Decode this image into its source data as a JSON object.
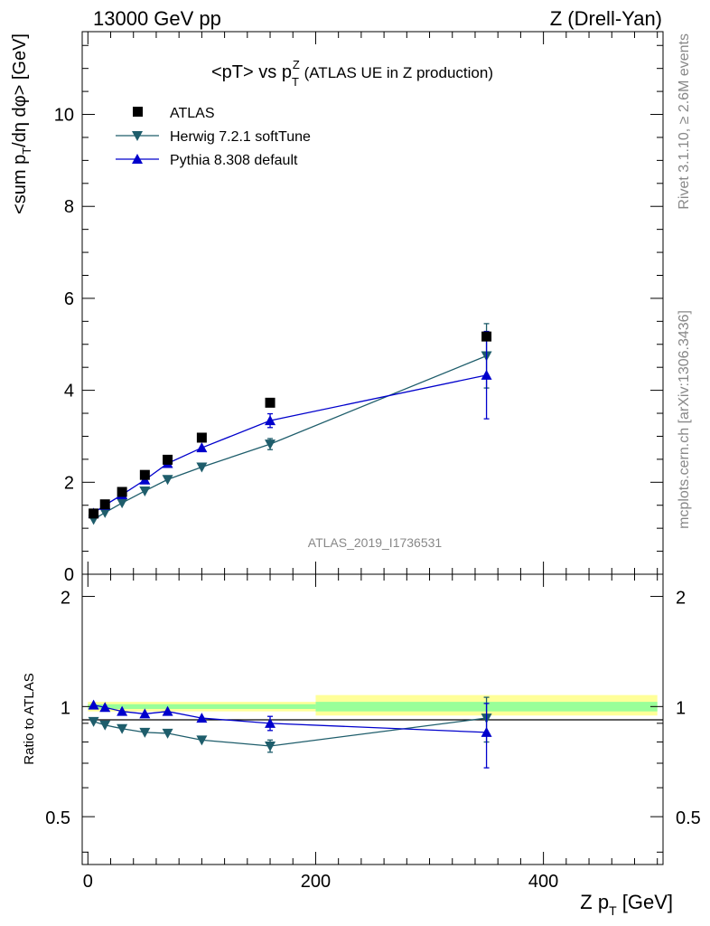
{
  "header": {
    "left": "13000 GeV pp",
    "right": "Z (Drell-Yan)"
  },
  "side_text": {
    "rivet": "Rivet 3.1.10, ≥ 2.6M events",
    "mcplots": "mcplots.cern.ch [arXiv:1306.3436]"
  },
  "chart_data": [
    {
      "type": "scatter",
      "title_main": "<pT> vs p",
      "title_sub": "T",
      "title_sup": "Z",
      "title_tail": " (ATLAS UE in Z production)",
      "ylabel": "<sum p_T/dη dφ> [GeV]",
      "ylim": [
        0,
        11.8
      ],
      "xlim": [
        -5,
        505
      ],
      "yticks": [
        "0",
        "2",
        "4",
        "6",
        "8",
        "10"
      ],
      "watermark": "ATLAS_2019_I1736531",
      "legend_placement": "top-left",
      "x": [
        5,
        15,
        30,
        50,
        70,
        100,
        160,
        350
      ],
      "series": [
        {
          "name": "ATLAS",
          "color": "#000000",
          "marker": "square",
          "values": [
            1.32,
            1.52,
            1.79,
            2.16,
            2.49,
            2.97,
            3.73,
            5.17
          ]
        },
        {
          "name": "Herwig 7.2.1 softTune",
          "color": "#1e5d6b",
          "marker": "triangle-down",
          "values": [
            1.19,
            1.34,
            1.55,
            1.81,
            2.06,
            2.33,
            2.83,
            4.75
          ],
          "errors": [
            0.02,
            0.02,
            0.03,
            0.03,
            0.04,
            0.06,
            0.12,
            0.7
          ]
        },
        {
          "name": "Pythia 8.308 default",
          "color": "#0000cc",
          "marker": "triangle-up",
          "values": [
            1.33,
            1.5,
            1.73,
            2.05,
            2.41,
            2.75,
            3.34,
            4.33
          ],
          "errors": [
            0.02,
            0.02,
            0.03,
            0.03,
            0.04,
            0.06,
            0.15,
            0.95
          ]
        }
      ]
    },
    {
      "type": "scatter",
      "ylabel": "Ratio to ATLAS",
      "xlabel": "Z p_T [GeV]",
      "ylim": [
        0.37,
        2.3
      ],
      "log_y": true,
      "yticks": [
        "0.5",
        "1",
        "2"
      ],
      "xticks": [
        "0",
        "200",
        "400"
      ],
      "x": [
        5,
        15,
        30,
        50,
        70,
        100,
        160,
        350
      ],
      "bands": [
        {
          "xrange": [
            0,
            200
          ],
          "inner": [
            0.985,
            1.015
          ],
          "outer": [
            0.97,
            1.03
          ]
        },
        {
          "xrange": [
            200,
            500
          ],
          "inner": [
            0.97,
            1.03
          ],
          "outer": [
            0.945,
            1.075
          ]
        }
      ],
      "series": [
        {
          "name": "Herwig 7.2.1 softTune",
          "color": "#1e5d6b",
          "marker": "triangle-down",
          "values": [
            0.91,
            0.89,
            0.87,
            0.85,
            0.845,
            0.81,
            0.78,
            0.93
          ],
          "errors": [
            0.01,
            0.01,
            0.01,
            0.01,
            0.01,
            0.015,
            0.03,
            0.13
          ]
        },
        {
          "name": "Pythia 8.308 default",
          "color": "#0000cc",
          "marker": "triangle-up",
          "values": [
            1.01,
            0.995,
            0.97,
            0.955,
            0.97,
            0.93,
            0.9,
            0.85
          ],
          "errors": [
            0.01,
            0.01,
            0.01,
            0.01,
            0.015,
            0.02,
            0.04,
            0.17
          ]
        }
      ]
    }
  ]
}
